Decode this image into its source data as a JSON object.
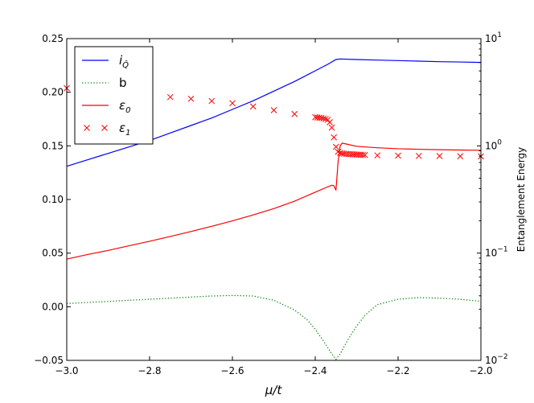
{
  "chart_data": {
    "type": "line",
    "xlabel": "μ/t",
    "ylabel_right": "Entanglement Energy",
    "xlim": [
      -3.0,
      -2.0
    ],
    "ylim_left": [
      -0.05,
      0.25
    ],
    "ylim_right": [
      0.01,
      10
    ],
    "right_scale": "log",
    "x_ticks": [
      {
        "v": -3.0,
        "label": "−3.0"
      },
      {
        "v": -2.8,
        "label": "−2.8"
      },
      {
        "v": -2.6,
        "label": "−2.6"
      },
      {
        "v": -2.4,
        "label": "−2.4"
      },
      {
        "v": -2.2,
        "label": "−2.2"
      },
      {
        "v": -2.0,
        "label": "−2.0"
      }
    ],
    "y_left_ticks": [
      {
        "v": -0.05,
        "label": "−0.05"
      },
      {
        "v": 0.0,
        "label": "0.00"
      },
      {
        "v": 0.05,
        "label": "0.05"
      },
      {
        "v": 0.1,
        "label": "0.10"
      },
      {
        "v": 0.15,
        "label": "0.15"
      },
      {
        "v": 0.2,
        "label": "0.20"
      },
      {
        "v": 0.25,
        "label": "0.25"
      }
    ],
    "y_right_ticks": [
      {
        "v": 0.01,
        "base": "10",
        "exp": "−2"
      },
      {
        "v": 0.1,
        "base": "10",
        "exp": "−1"
      },
      {
        "v": 1,
        "base": "10",
        "exp": "0"
      },
      {
        "v": 10,
        "base": "10",
        "exp": "1"
      }
    ],
    "legend": {
      "position": "top-left",
      "entries": [
        {
          "label": "i",
          "sub": "Q̂",
          "style": "line",
          "color": "#0000ff"
        },
        {
          "label": "b",
          "style": "dotted",
          "color": "#008000",
          "plain": true
        },
        {
          "label": "ε",
          "sub": "0",
          "style": "line",
          "color": "#ff0000"
        },
        {
          "label": "ε",
          "sub": "1",
          "style": "x-marker",
          "color": "#ff0000"
        }
      ]
    },
    "series": [
      {
        "name": "iQ",
        "axis": "left",
        "style": "line",
        "color": "#0000ff",
        "x": [
          -3.0,
          -2.95,
          -2.9,
          -2.85,
          -2.8,
          -2.75,
          -2.7,
          -2.65,
          -2.6,
          -2.55,
          -2.5,
          -2.45,
          -2.4,
          -2.37,
          -2.35,
          -2.34,
          -2.3,
          -2.25,
          -2.2,
          -2.15,
          -2.1,
          -2.05,
          -2.0
        ],
        "y": [
          0.131,
          0.137,
          0.143,
          0.149,
          0.155,
          0.162,
          0.169,
          0.176,
          0.184,
          0.192,
          0.201,
          0.21,
          0.22,
          0.226,
          0.2305,
          0.231,
          0.2305,
          0.23,
          0.2295,
          0.229,
          0.2285,
          0.2282,
          0.2278
        ]
      },
      {
        "name": "b",
        "axis": "left",
        "style": "dotted",
        "color": "#008000",
        "x": [
          -3.0,
          -2.9,
          -2.8,
          -2.7,
          -2.65,
          -2.6,
          -2.55,
          -2.5,
          -2.45,
          -2.42,
          -2.4,
          -2.38,
          -2.36,
          -2.35,
          -2.34,
          -2.32,
          -2.3,
          -2.28,
          -2.25,
          -2.2,
          -2.15,
          -2.1,
          -2.05,
          -2.0
        ],
        "y": [
          0.003,
          0.005,
          0.007,
          0.009,
          0.01,
          0.0105,
          0.01,
          0.006,
          -0.003,
          -0.012,
          -0.021,
          -0.032,
          -0.044,
          -0.049,
          -0.044,
          -0.03,
          -0.018,
          -0.008,
          0.002,
          0.007,
          0.0085,
          0.008,
          0.007,
          0.005
        ]
      },
      {
        "name": "ε0",
        "axis": "right",
        "style": "line",
        "color": "#ff0000",
        "x": [
          -3.0,
          -2.95,
          -2.9,
          -2.85,
          -2.8,
          -2.75,
          -2.7,
          -2.65,
          -2.6,
          -2.55,
          -2.5,
          -2.45,
          -2.4,
          -2.37,
          -2.36,
          -2.355,
          -2.35,
          -2.345,
          -2.34,
          -2.335,
          -2.33,
          -2.32,
          -2.3,
          -2.25,
          -2.2,
          -2.15,
          -2.1,
          -2.05,
          -2.0
        ],
        "y": [
          0.088,
          0.097,
          0.106,
          0.117,
          0.129,
          0.143,
          0.159,
          0.178,
          0.2,
          0.227,
          0.26,
          0.305,
          0.37,
          0.415,
          0.43,
          0.425,
          0.385,
          0.7,
          1.0,
          1.06,
          1.05,
          1.03,
          0.99,
          0.96,
          0.94,
          0.93,
          0.92,
          0.915,
          0.91
        ]
      },
      {
        "name": "ε1",
        "axis": "right",
        "style": "x-marker",
        "color": "#ff0000",
        "x": [
          -3.0,
          -2.95,
          -2.9,
          -2.85,
          -2.8,
          -2.75,
          -2.7,
          -2.65,
          -2.6,
          -2.55,
          -2.5,
          -2.45,
          -2.4,
          -2.395,
          -2.39,
          -2.385,
          -2.38,
          -2.375,
          -2.37,
          -2.365,
          -2.36,
          -2.355,
          -2.35,
          -2.345,
          -2.34,
          -2.335,
          -2.33,
          -2.325,
          -2.32,
          -2.315,
          -2.31,
          -2.305,
          -2.3,
          -2.295,
          -2.29,
          -2.285,
          -2.28,
          -2.25,
          -2.2,
          -2.15,
          -2.1,
          -2.05,
          -2.0
        ],
        "y": [
          3.45,
          3.3,
          3.15,
          3.05,
          2.95,
          2.85,
          2.75,
          2.62,
          2.5,
          2.33,
          2.15,
          1.98,
          1.85,
          1.84,
          1.83,
          1.82,
          1.8,
          1.78,
          1.75,
          1.66,
          1.48,
          1.2,
          0.98,
          0.88,
          0.86,
          0.85,
          0.845,
          0.84,
          0.838,
          0.836,
          0.834,
          0.832,
          0.83,
          0.828,
          0.826,
          0.824,
          0.822,
          0.815,
          0.81,
          0.806,
          0.803,
          0.8,
          0.798
        ]
      }
    ]
  }
}
